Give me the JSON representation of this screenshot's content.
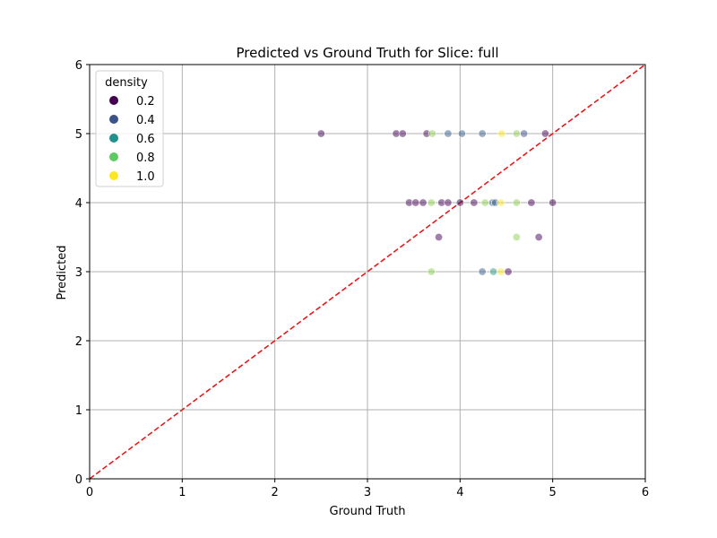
{
  "chart_data": {
    "type": "scatter",
    "title": "Predicted vs Ground Truth for Slice: full",
    "xlabel": "Ground Truth",
    "ylabel": "Predicted",
    "xlim": [
      0,
      6
    ],
    "ylim": [
      0,
      6
    ],
    "xticks": [
      "0",
      "1",
      "2",
      "3",
      "4",
      "5",
      "6"
    ],
    "yticks": [
      "0",
      "1",
      "2",
      "3",
      "4",
      "5",
      "6"
    ],
    "grid": true,
    "reference_line": {
      "x": [
        0,
        6
      ],
      "y": [
        0,
        6
      ],
      "color": "#e8191a",
      "style": "dashed"
    },
    "legend": {
      "title": "density",
      "placement": "top-left",
      "entries": [
        {
          "label": "0.2",
          "color": "#440154"
        },
        {
          "label": "0.4",
          "color": "#3b528b"
        },
        {
          "label": "0.6",
          "color": "#21918c"
        },
        {
          "label": "0.8",
          "color": "#5ec962"
        },
        {
          "label": "1.0",
          "color": "#fde725"
        }
      ]
    },
    "points": [
      {
        "x": 2.5,
        "y": 5.0,
        "density": 0.15
      },
      {
        "x": 3.31,
        "y": 5.0,
        "density": 0.15
      },
      {
        "x": 3.38,
        "y": 5.0,
        "density": 0.15
      },
      {
        "x": 3.64,
        "y": 5.0,
        "density": 0.15
      },
      {
        "x": 3.7,
        "y": 5.0,
        "density": 0.85
      },
      {
        "x": 3.87,
        "y": 5.0,
        "density": 0.4
      },
      {
        "x": 4.02,
        "y": 5.0,
        "density": 0.4
      },
      {
        "x": 4.24,
        "y": 5.0,
        "density": 0.4
      },
      {
        "x": 4.45,
        "y": 5.0,
        "density": 1.0
      },
      {
        "x": 4.61,
        "y": 5.0,
        "density": 0.85
      },
      {
        "x": 4.69,
        "y": 5.0,
        "density": 0.35
      },
      {
        "x": 4.92,
        "y": 5.0,
        "density": 0.15
      },
      {
        "x": 3.45,
        "y": 4.0,
        "density": 0.15
      },
      {
        "x": 3.52,
        "y": 4.0,
        "density": 0.15
      },
      {
        "x": 3.6,
        "y": 4.0,
        "density": 0.15
      },
      {
        "x": 3.69,
        "y": 4.0,
        "density": 0.85
      },
      {
        "x": 3.8,
        "y": 4.0,
        "density": 0.15
      },
      {
        "x": 3.87,
        "y": 4.0,
        "density": 0.15
      },
      {
        "x": 4.0,
        "y": 4.0,
        "density": 0.15
      },
      {
        "x": 4.15,
        "y": 4.0,
        "density": 0.15
      },
      {
        "x": 4.27,
        "y": 4.0,
        "density": 0.85
      },
      {
        "x": 4.35,
        "y": 4.0,
        "density": 0.4
      },
      {
        "x": 4.38,
        "y": 4.0,
        "density": 0.4
      },
      {
        "x": 4.44,
        "y": 4.0,
        "density": 1.0
      },
      {
        "x": 4.61,
        "y": 4.0,
        "density": 0.85
      },
      {
        "x": 4.77,
        "y": 4.0,
        "density": 0.15
      },
      {
        "x": 5.0,
        "y": 4.0,
        "density": 0.15
      },
      {
        "x": 3.77,
        "y": 3.5,
        "density": 0.15
      },
      {
        "x": 4.61,
        "y": 3.5,
        "density": 0.85
      },
      {
        "x": 4.85,
        "y": 3.5,
        "density": 0.15
      },
      {
        "x": 3.69,
        "y": 3.0,
        "density": 0.85
      },
      {
        "x": 4.24,
        "y": 3.0,
        "density": 0.4
      },
      {
        "x": 4.36,
        "y": 3.0,
        "density": 0.6
      },
      {
        "x": 4.44,
        "y": 3.0,
        "density": 1.0
      },
      {
        "x": 4.52,
        "y": 3.0,
        "density": 0.15
      }
    ]
  }
}
